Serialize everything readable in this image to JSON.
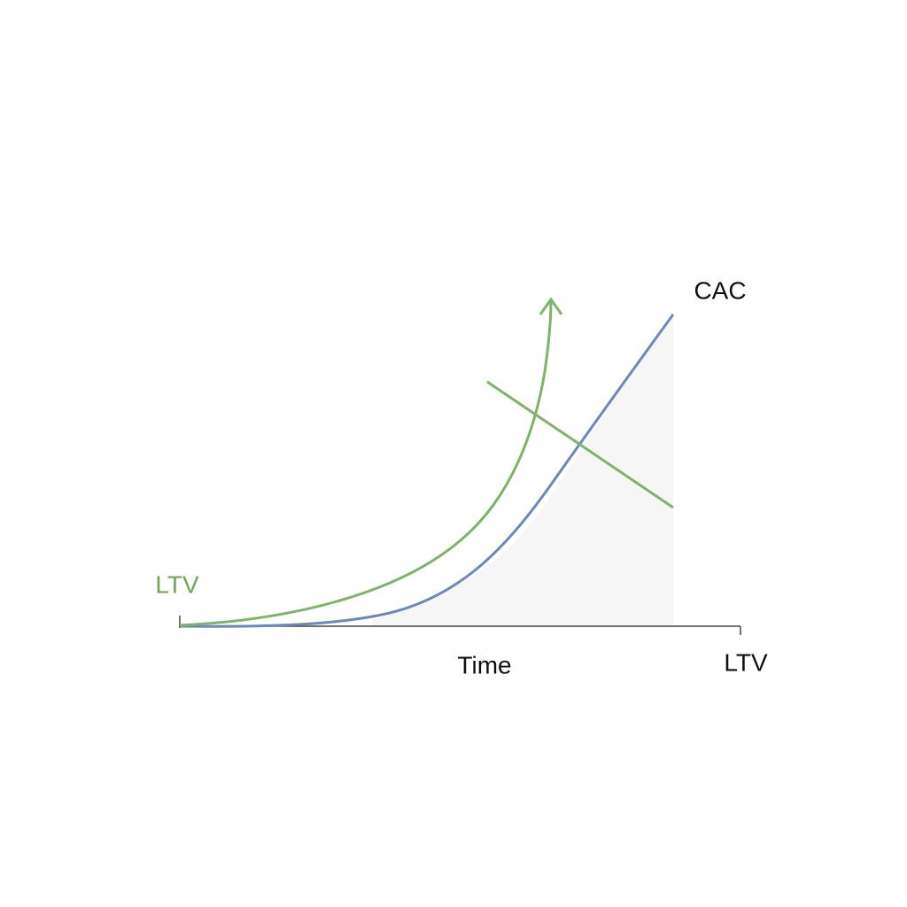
{
  "labels": {
    "cac": "CAC",
    "ltv_left": "LTV",
    "time": "Time",
    "ltv_right": "LTV"
  }
}
